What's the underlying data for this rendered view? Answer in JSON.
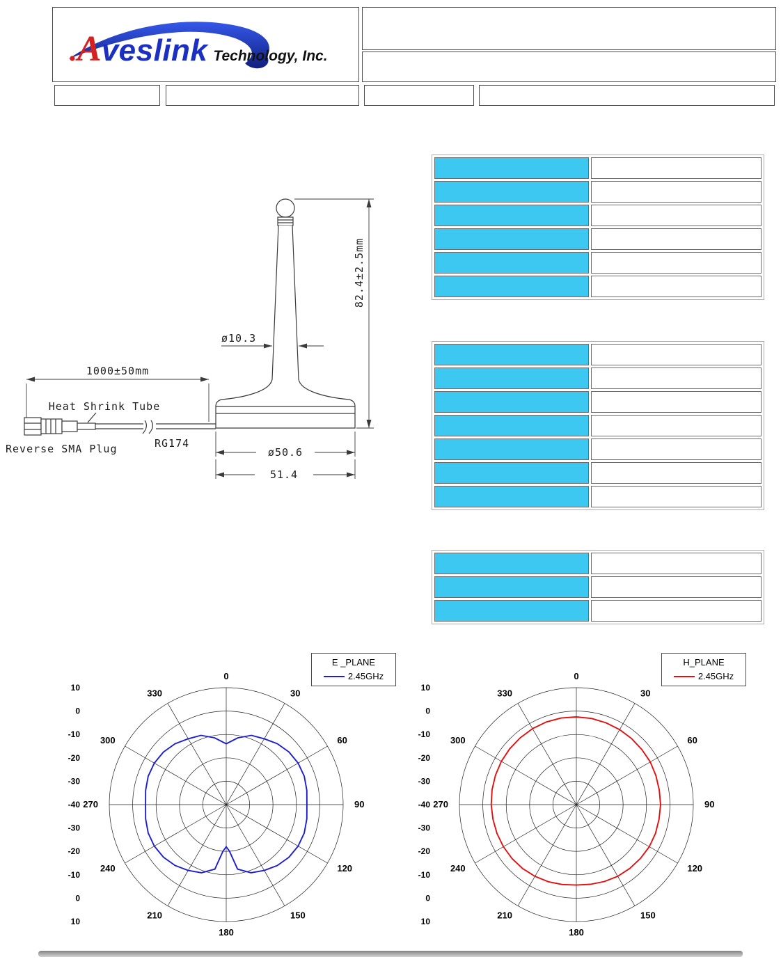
{
  "header": {
    "logo": {
      "prefix_dot": ".",
      "letter_a": "A",
      "name_rest": "veslink",
      "suffix": "Technology, Inc.",
      "brand_blue": "#1b2fc0",
      "brand_red": "#d42222"
    },
    "title_box_text": "",
    "subtitle_box_text": "",
    "row_cells": [
      "",
      "",
      "",
      ""
    ]
  },
  "drawing": {
    "labels": {
      "cable_length": "1000±50mm",
      "heat_shrink_tube": "Heat Shrink Tube",
      "connector": "Reverse SMA Plug",
      "cable_type": "RG174",
      "whip_diameter": "ø10.3",
      "overall_height": "82.4±2.5mm",
      "base_diameter": "ø50.6",
      "base_width": "51.4"
    }
  },
  "spec_tables": {
    "accent_color": "#3cc8f0",
    "tables": [
      {
        "rows": [
          [
            "",
            ""
          ],
          [
            "",
            ""
          ],
          [
            "",
            ""
          ],
          [
            "",
            ""
          ],
          [
            "",
            ""
          ],
          [
            "",
            ""
          ]
        ]
      },
      {
        "rows": [
          [
            "",
            ""
          ],
          [
            "",
            ""
          ],
          [
            "",
            ""
          ],
          [
            "",
            ""
          ],
          [
            "",
            ""
          ],
          [
            "",
            ""
          ],
          [
            "",
            ""
          ]
        ]
      },
      {
        "rows": [
          [
            "",
            ""
          ],
          [
            "",
            ""
          ],
          [
            "",
            ""
          ]
        ]
      }
    ]
  },
  "chart_data": [
    {
      "type": "polar-line",
      "title": "E _PLANE",
      "legend": "2.45GHz",
      "color": "#1d1dcc",
      "r_min": -40,
      "r_max": 10,
      "r_ticks": [
        10,
        0,
        -10,
        -20,
        -30,
        -40
      ],
      "angle_ticks_deg": [
        0,
        30,
        60,
        90,
        120,
        150,
        180,
        210,
        240,
        270,
        300,
        330
      ],
      "angles_deg": [
        0,
        10,
        20,
        30,
        40,
        50,
        60,
        70,
        80,
        90,
        100,
        110,
        120,
        130,
        140,
        150,
        160,
        170,
        176,
        180,
        184,
        190,
        200,
        210,
        220,
        230,
        240,
        250,
        260,
        270,
        280,
        290,
        300,
        310,
        320,
        330,
        340,
        350,
        360
      ],
      "values_db": [
        -14,
        -11,
        -8.5,
        -7.5,
        -6,
        -5,
        -4.5,
        -4.5,
        -5,
        -5.5,
        -5,
        -4.5,
        -4.5,
        -5,
        -6,
        -7.5,
        -9,
        -12,
        -20,
        -22,
        -20,
        -12,
        -9,
        -7.5,
        -6,
        -5,
        -4.5,
        -4.5,
        -5,
        -5.5,
        -5,
        -4.5,
        -4.5,
        -5,
        -6,
        -7.5,
        -8.5,
        -11,
        -14
      ]
    },
    {
      "type": "polar-line",
      "title": "H_PLANE",
      "legend": "2.45GHz",
      "color": "#e01010",
      "r_min": -40,
      "r_max": 10,
      "r_ticks": [
        10,
        0,
        -10,
        -20,
        -30,
        -40
      ],
      "angle_ticks_deg": [
        0,
        30,
        60,
        90,
        120,
        150,
        180,
        210,
        240,
        270,
        300,
        330
      ],
      "angles_deg": [
        0,
        10,
        20,
        30,
        40,
        50,
        60,
        70,
        80,
        90,
        100,
        110,
        120,
        130,
        140,
        150,
        160,
        170,
        180,
        190,
        200,
        210,
        220,
        230,
        240,
        250,
        260,
        270,
        280,
        290,
        300,
        310,
        320,
        330,
        340,
        350,
        360
      ],
      "values_db": [
        -2.5,
        -2.6,
        -2.8,
        -3,
        -3.2,
        -3.4,
        -3.5,
        -3.8,
        -4,
        -4,
        -4.1,
        -4,
        -4,
        -4.2,
        -4.4,
        -4.6,
        -5,
        -5.4,
        -5.6,
        -5.3,
        -4.9,
        -4.6,
        -4.3,
        -4.1,
        -4,
        -3.9,
        -3.8,
        -3.6,
        -3.4,
        -3.2,
        -3,
        -2.8,
        -2.7,
        -2.5,
        -2.4,
        -2.4,
        -2.5
      ]
    }
  ]
}
